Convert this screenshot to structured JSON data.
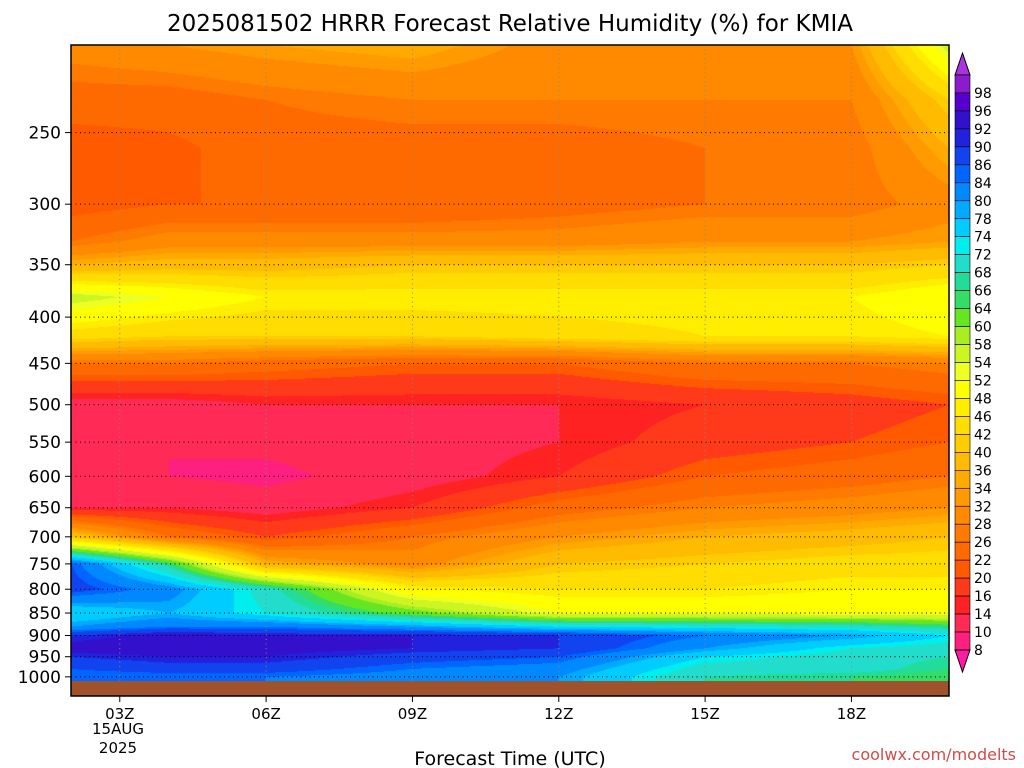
{
  "chart_data": {
    "type": "heatmap",
    "title": "2025081502 HRRR Forecast Relative Humidity (%) for KMIA",
    "xlabel": "Forecast Time (UTC)",
    "ylabel": "",
    "x_ticks": [
      {
        "label": "03Z",
        "hour": 3
      },
      {
        "label": "06Z",
        "hour": 6
      },
      {
        "label": "09Z",
        "hour": 9
      },
      {
        "label": "12Z",
        "hour": 12
      },
      {
        "label": "15Z",
        "hour": 15
      },
      {
        "label": "18Z",
        "hour": 18
      }
    ],
    "date_label_line1": "15AUG",
    "date_label_line2": "2025",
    "xlim_hours": [
      2,
      20
    ],
    "y_axis": {
      "scale": "log",
      "ylim_hpa": [
        200,
        1050
      ],
      "inverted": true
    },
    "y_ticks": [
      250,
      300,
      350,
      400,
      450,
      500,
      550,
      600,
      650,
      700,
      750,
      800,
      850,
      900,
      950,
      1000
    ],
    "grid": true,
    "legend_placement": "right",
    "colorbar": {
      "levels": [
        8,
        10,
        14,
        16,
        20,
        22,
        26,
        28,
        32,
        34,
        36,
        40,
        42,
        46,
        48,
        52,
        54,
        58,
        60,
        64,
        66,
        68,
        72,
        74,
        78,
        80,
        84,
        86,
        90,
        92,
        96,
        98
      ],
      "colors": [
        "#ff1aa6",
        "#ff1f80",
        "#ff2a55",
        "#ff2222",
        "#ff3a1a",
        "#ff5a00",
        "#ff6a00",
        "#ff7a00",
        "#ff8a00",
        "#ff9b00",
        "#ffaa00",
        "#ffbb00",
        "#ffcc00",
        "#ffdd00",
        "#ffee00",
        "#ffff00",
        "#eeff22",
        "#ccf522",
        "#aaee22",
        "#66e622",
        "#33dd66",
        "#22dd99",
        "#22ddcc",
        "#00eeee",
        "#00ccff",
        "#00aaff",
        "#0088ff",
        "#0066ff",
        "#1144ee",
        "#2222dd",
        "#3311cc",
        "#5500cc",
        "#8a1ccc",
        "#aa33dd"
      ]
    },
    "rh_profiles": [
      {
        "hour": 2,
        "pressure_hpa": [
          200,
          230,
          260,
          300,
          330,
          350,
          380,
          420,
          450,
          500,
          550,
          600,
          650,
          700,
          750,
          800,
          850,
          880,
          900,
          930,
          950,
          980,
          1000
        ],
        "rh": [
          30,
          24,
          20,
          20,
          26,
          36,
          56,
          44,
          26,
          12,
          10,
          10,
          14,
          40,
          86,
          88,
          74,
          80,
          90,
          94,
          90,
          86,
          84
        ]
      },
      {
        "hour": 4,
        "pressure_hpa": [
          200,
          230,
          260,
          300,
          330,
          350,
          380,
          420,
          450,
          500,
          550,
          600,
          650,
          700,
          750,
          800,
          850,
          880,
          900,
          930,
          950,
          980,
          1000
        ],
        "rh": [
          32,
          24,
          21,
          22,
          30,
          38,
          52,
          42,
          26,
          12,
          10,
          10,
          14,
          26,
          66,
          82,
          78,
          84,
          94,
          96,
          92,
          88,
          84
        ]
      },
      {
        "hour": 6,
        "pressure_hpa": [
          200,
          230,
          260,
          300,
          330,
          350,
          380,
          420,
          450,
          500,
          550,
          600,
          650,
          700,
          750,
          800,
          850,
          880,
          900,
          930,
          950,
          980,
          1000
        ],
        "rh": [
          34,
          26,
          24,
          22,
          30,
          38,
          48,
          42,
          24,
          14,
          11,
          9,
          12,
          20,
          36,
          70,
          72,
          84,
          92,
          94,
          92,
          88,
          84
        ]
      },
      {
        "hour": 9,
        "pressure_hpa": [
          200,
          230,
          260,
          300,
          330,
          350,
          380,
          420,
          450,
          500,
          550,
          600,
          650,
          700,
          750,
          800,
          850,
          880,
          900,
          930,
          950,
          980,
          1000
        ],
        "rh": [
          36,
          28,
          24,
          22,
          30,
          40,
          48,
          42,
          22,
          14,
          12,
          12,
          16,
          26,
          30,
          48,
          62,
          80,
          92,
          92,
          88,
          84,
          82
        ]
      },
      {
        "hour": 12,
        "pressure_hpa": [
          200,
          230,
          260,
          300,
          330,
          350,
          380,
          420,
          450,
          500,
          550,
          600,
          650,
          700,
          750,
          800,
          850,
          880,
          900,
          930,
          950,
          980,
          1000
        ],
        "rh": [
          30,
          28,
          24,
          24,
          30,
          40,
          48,
          44,
          22,
          14,
          14,
          16,
          24,
          32,
          40,
          46,
          52,
          74,
          90,
          90,
          86,
          82,
          80
        ]
      },
      {
        "hour": 15,
        "pressure_hpa": [
          200,
          230,
          260,
          300,
          330,
          350,
          380,
          420,
          450,
          500,
          550,
          600,
          650,
          700,
          750,
          800,
          850,
          880,
          900,
          930,
          950,
          980,
          1000
        ],
        "rh": [
          32,
          28,
          26,
          26,
          32,
          40,
          48,
          46,
          26,
          16,
          18,
          22,
          28,
          36,
          42,
          46,
          52,
          72,
          84,
          80,
          74,
          70,
          68
        ]
      },
      {
        "hour": 18,
        "pressure_hpa": [
          200,
          230,
          260,
          300,
          330,
          350,
          380,
          420,
          450,
          500,
          550,
          600,
          650,
          700,
          750,
          800,
          850,
          880,
          900,
          930,
          950,
          980,
          1000
        ],
        "rh": [
          32,
          28,
          26,
          26,
          32,
          40,
          48,
          46,
          26,
          18,
          20,
          24,
          30,
          38,
          44,
          48,
          52,
          70,
          80,
          72,
          70,
          70,
          66
        ]
      },
      {
        "hour": 20,
        "pressure_hpa": [
          200,
          230,
          260,
          300,
          330,
          350,
          380,
          420,
          450,
          500,
          550,
          600,
          650,
          700,
          750,
          800,
          850,
          880,
          900,
          930,
          950,
          980,
          1000
        ],
        "rh": [
          56,
          42,
          36,
          30,
          34,
          42,
          52,
          48,
          28,
          20,
          22,
          26,
          32,
          40,
          44,
          48,
          52,
          66,
          74,
          70,
          68,
          66,
          64
        ]
      }
    ],
    "surface_color": "#a0522d"
  },
  "watermark": "coolwx.com/modelts"
}
